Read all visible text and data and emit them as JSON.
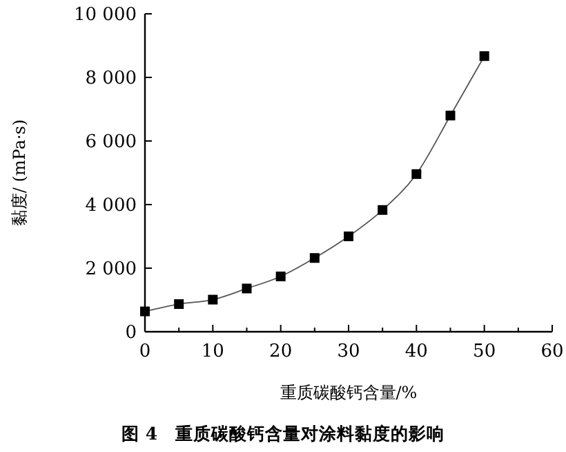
{
  "chart_data": {
    "type": "line",
    "title": "图 4　重质碳酸钙含量对涂料黏度的影响",
    "xlabel": "重质碳酸钙含量/%",
    "ylabel": "黏度/ (mPa·s)",
    "x": [
      0,
      5,
      10,
      15,
      20,
      25,
      30,
      35,
      40,
      45,
      50
    ],
    "series": [
      {
        "color": "#000000",
        "values": [
          640,
          870,
          1010,
          1360,
          1740,
          2320,
          3000,
          3830,
          4960,
          6800,
          8670
        ]
      }
    ],
    "xlim": [
      0,
      60
    ],
    "xticks": [
      0,
      {
        "value": 5,
        "label": null
      },
      10,
      {
        "value": 15,
        "label": null
      },
      20,
      {
        "value": 25,
        "label": null
      },
      30,
      {
        "value": 35,
        "label": null
      },
      40,
      {
        "value": 45,
        "label": null
      },
      50,
      {
        "value": 55,
        "label": null
      },
      60
    ],
    "ylim": [
      0,
      10000
    ],
    "yticks": [
      0,
      {
        "value": 2000,
        "label": "2 000"
      },
      {
        "value": 4000,
        "label": "4 000"
      },
      {
        "value": 6000,
        "label": "6 000"
      },
      {
        "value": 8000,
        "label": "8 000"
      },
      {
        "value": 10000,
        "label": "10 000"
      }
    ],
    "marker": "square",
    "grid": false
  }
}
